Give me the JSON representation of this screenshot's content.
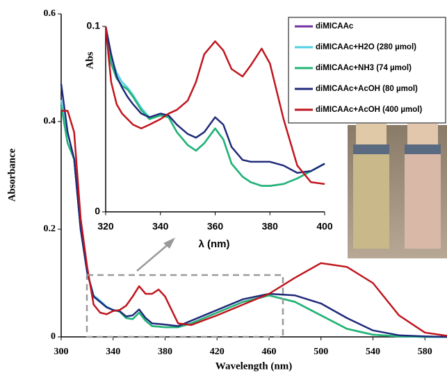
{
  "chart_data": [
    {
      "type": "line",
      "xlabel": "Wavelength (nm)",
      "ylabel": "Absorbance",
      "x": [
        300,
        305,
        310,
        315,
        320,
        325,
        330,
        335,
        340,
        345,
        350,
        355,
        360,
        365,
        370,
        375,
        380,
        390,
        400,
        420,
        440,
        460,
        480,
        500,
        520,
        540,
        560,
        580,
        597
      ],
      "xlim": [
        300,
        597
      ],
      "ylim": [
        0,
        0.6
      ],
      "xticks": [
        300,
        340,
        380,
        420,
        460,
        500,
        540,
        580
      ],
      "yticks": [
        0,
        0.2,
        0.4,
        0.6
      ],
      "legend": "upper right",
      "series": [
        {
          "name": "diMICAAc",
          "color": "#7030a0",
          "values": [
            0.43,
            0.36,
            0.33,
            0.2,
            0.12,
            0.075,
            0.065,
            0.055,
            0.05,
            0.047,
            0.035,
            0.033,
            0.045,
            0.03,
            0.02,
            0.019,
            0.018,
            0.018,
            0.025,
            0.045,
            0.065,
            0.077,
            0.065,
            0.04,
            0.015,
            0.004,
            0.001,
            0,
            0
          ]
        },
        {
          "name": "diMICAAc+H2O (280 µmol)",
          "color": "#4fd0e4",
          "values": [
            0.44,
            0.36,
            0.33,
            0.2,
            0.12,
            0.077,
            0.067,
            0.056,
            0.05,
            0.047,
            0.035,
            0.033,
            0.045,
            0.03,
            0.02,
            0.019,
            0.018,
            0.018,
            0.025,
            0.045,
            0.065,
            0.077,
            0.065,
            0.04,
            0.015,
            0.004,
            0.001,
            0,
            0
          ]
        },
        {
          "name": "diMICAAc+NH3 (74 µmol)",
          "color": "#22b573",
          "values": [
            0.43,
            0.36,
            0.33,
            0.2,
            0.12,
            0.075,
            0.065,
            0.055,
            0.05,
            0.047,
            0.035,
            0.033,
            0.045,
            0.03,
            0.02,
            0.019,
            0.018,
            0.018,
            0.025,
            0.045,
            0.065,
            0.077,
            0.065,
            0.04,
            0.015,
            0.004,
            0.001,
            0,
            0
          ]
        },
        {
          "name": "diMICAAc+AcOH (80 µmol)",
          "color": "#1f2a7a",
          "values": [
            0.47,
            0.38,
            0.33,
            0.2,
            0.12,
            0.075,
            0.065,
            0.055,
            0.05,
            0.048,
            0.038,
            0.04,
            0.051,
            0.035,
            0.025,
            0.024,
            0.023,
            0.02,
            0.03,
            0.05,
            0.07,
            0.08,
            0.077,
            0.062,
            0.035,
            0.012,
            0.003,
            0.001,
            0
          ]
        },
        {
          "name": "diMICAAc+AcOH (400 µmol)",
          "color": "#c0141c",
          "values": [
            0.42,
            0.42,
            0.38,
            0.22,
            0.13,
            0.06,
            0.045,
            0.042,
            0.048,
            0.05,
            0.058,
            0.075,
            0.094,
            0.08,
            0.08,
            0.088,
            0.075,
            0.025,
            0.022,
            0.04,
            0.06,
            0.08,
            0.11,
            0.137,
            0.13,
            0.1,
            0.04,
            0.008,
            0.002
          ]
        }
      ]
    },
    {
      "type": "line",
      "xlabel": "λ (nm)",
      "ylabel": "Abs",
      "x": [
        320,
        322,
        324,
        326,
        328,
        330,
        333,
        336,
        340,
        343,
        346,
        350,
        353,
        356,
        360,
        363,
        366,
        370,
        373,
        377,
        380,
        385,
        390,
        395,
        400
      ],
      "xlim": [
        320,
        400
      ],
      "ylim": [
        0,
        0.1
      ],
      "xticks": [
        320,
        340,
        360,
        380,
        400
      ],
      "yticks": [
        0,
        0.1
      ],
      "series": [
        {
          "color": "#7030a0",
          "values": [
            0.1,
            0.08,
            0.072,
            0.068,
            0.066,
            0.062,
            0.055,
            0.05,
            0.052,
            0.051,
            0.043,
            0.036,
            0.033,
            0.037,
            0.045,
            0.039,
            0.026,
            0.019,
            0.016,
            0.014,
            0.014,
            0.015,
            0.018,
            0.022,
            0.026
          ]
        },
        {
          "color": "#4fd0e4",
          "values": [
            0.1,
            0.083,
            0.075,
            0.07,
            0.067,
            0.063,
            0.056,
            0.051,
            0.052,
            0.051,
            0.043,
            0.036,
            0.033,
            0.037,
            0.045,
            0.039,
            0.026,
            0.019,
            0.016,
            0.014,
            0.014,
            0.015,
            0.018,
            0.022,
            0.026
          ]
        },
        {
          "color": "#22b573",
          "values": [
            0.1,
            0.08,
            0.072,
            0.068,
            0.066,
            0.062,
            0.055,
            0.05,
            0.052,
            0.051,
            0.043,
            0.036,
            0.033,
            0.037,
            0.045,
            0.039,
            0.026,
            0.019,
            0.016,
            0.014,
            0.014,
            0.015,
            0.018,
            0.022,
            0.026
          ]
        },
        {
          "color": "#1f2a7a",
          "values": [
            0.1,
            0.085,
            0.073,
            0.067,
            0.062,
            0.058,
            0.053,
            0.051,
            0.053,
            0.052,
            0.047,
            0.042,
            0.04,
            0.043,
            0.051,
            0.047,
            0.035,
            0.028,
            0.027,
            0.027,
            0.027,
            0.025,
            0.021,
            0.022,
            0.026
          ]
        },
        {
          "color": "#c0141c",
          "values": [
            0.1,
            0.07,
            0.058,
            0.053,
            0.05,
            0.047,
            0.045,
            0.047,
            0.05,
            0.053,
            0.055,
            0.06,
            0.07,
            0.085,
            0.092,
            0.087,
            0.077,
            0.073,
            0.079,
            0.088,
            0.08,
            0.05,
            0.025,
            0.016,
            0.015
          ]
        }
      ]
    }
  ]
}
